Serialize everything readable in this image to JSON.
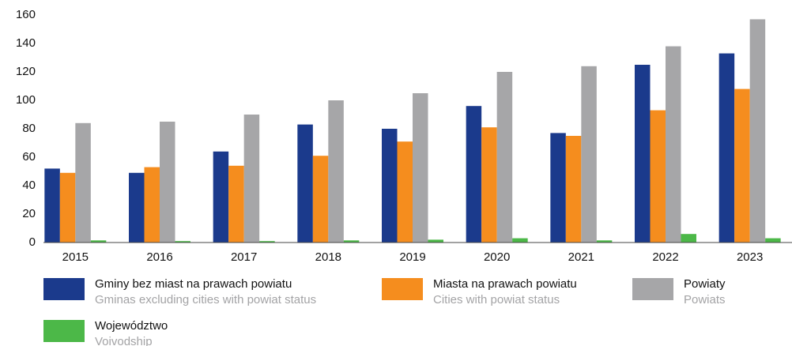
{
  "chart_data": {
    "type": "bar",
    "categories": [
      "2015",
      "2016",
      "2017",
      "2018",
      "2019",
      "2020",
      "2021",
      "2022",
      "2023"
    ],
    "series": [
      {
        "name": "Gminy bez miast na prawach powiatu",
        "name_en": "Gminas excluding cities with powiat status",
        "color": "#1b3a8c",
        "values": [
          52,
          49,
          64,
          83,
          80,
          96,
          77,
          125,
          133
        ]
      },
      {
        "name": "Miasta na prawach powiatu",
        "name_en": "Cities with powiat status",
        "color": "#f58d1e",
        "values": [
          49,
          53,
          54,
          61,
          71,
          81,
          75,
          93,
          108
        ]
      },
      {
        "name": "Powiaty",
        "name_en": "Powiats",
        "color": "#a6a6a8",
        "values": [
          84,
          85,
          90,
          100,
          105,
          120,
          124,
          138,
          157
        ]
      },
      {
        "name": "Województwo",
        "name_en": "Voivodship",
        "color": "#4cb848",
        "values": [
          1.5,
          1,
          1,
          1.5,
          2,
          3,
          1.5,
          6,
          3
        ]
      }
    ],
    "ylim": [
      0,
      160
    ],
    "yticks": [
      0,
      20,
      40,
      60,
      80,
      100,
      120,
      140,
      160
    ],
    "grid": false
  }
}
